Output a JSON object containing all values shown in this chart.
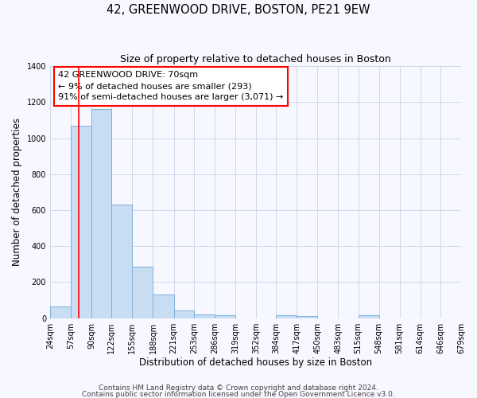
{
  "title": "42, GREENWOOD DRIVE, BOSTON, PE21 9EW",
  "subtitle": "Size of property relative to detached houses in Boston",
  "xlabel": "Distribution of detached houses by size in Boston",
  "ylabel": "Number of detached properties",
  "bin_edges": [
    24,
    57,
    90,
    122,
    155,
    188,
    221,
    253,
    286,
    319,
    352,
    384,
    417,
    450,
    483,
    515,
    548,
    581,
    614,
    646,
    679
  ],
  "bar_heights": [
    65,
    1070,
    1160,
    630,
    285,
    130,
    45,
    20,
    15,
    0,
    0,
    15,
    10,
    0,
    0,
    15,
    0,
    0,
    0,
    0
  ],
  "bar_color": "#c9ddf2",
  "bar_edge_color": "#7fb0dc",
  "property_line_x": 70,
  "property_line_color": "red",
  "annotation_line1": "42 GREENWOOD DRIVE: 70sqm",
  "annotation_line2": "← 9% of detached houses are smaller (293)",
  "annotation_line3": "91% of semi-detached houses are larger (3,071) →",
  "ylim": [
    0,
    1400
  ],
  "yticks": [
    0,
    200,
    400,
    600,
    800,
    1000,
    1200,
    1400
  ],
  "footnote1": "Contains HM Land Registry data © Crown copyright and database right 2024.",
  "footnote2": "Contains public sector information licensed under the Open Government Licence v3.0.",
  "bg_color": "#f7f7ff",
  "grid_color": "#c8d4e8",
  "title_fontsize": 10.5,
  "subtitle_fontsize": 9,
  "axis_label_fontsize": 8.5,
  "tick_label_fontsize": 7,
  "annotation_fontsize": 8,
  "footnote_fontsize": 6.5
}
